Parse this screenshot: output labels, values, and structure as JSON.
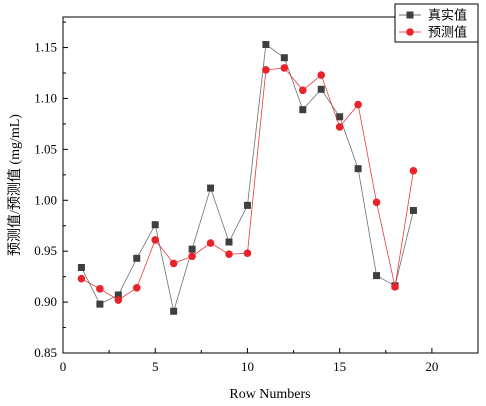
{
  "chart_data": {
    "type": "line",
    "xlabel": "Row Numbers",
    "ylabel": "预测值/预测值 (mg/mL)",
    "xlim": [
      0,
      22.5
    ],
    "ylim": [
      0.85,
      1.18
    ],
    "xticks": [
      0,
      5,
      10,
      15,
      20
    ],
    "xtick_labels": [
      "0",
      "5",
      "10",
      "15",
      "20"
    ],
    "yticks": [
      0.85,
      0.9,
      0.95,
      1.0,
      1.05,
      1.1,
      1.15
    ],
    "ytick_labels": [
      "0.85",
      "0.90",
      "0.95",
      "1.00",
      "1.05",
      "1.10",
      "1.15"
    ],
    "grid": false,
    "legend_position": "top-right",
    "x": [
      1,
      2,
      3,
      4,
      5,
      6,
      7,
      8,
      9,
      10,
      11,
      12,
      13,
      14,
      15,
      16,
      17,
      18,
      19
    ],
    "series": [
      {
        "name": "真实值",
        "marker": "square",
        "color": "#3f3f3f",
        "values": [
          0.934,
          0.898,
          0.907,
          0.943,
          0.976,
          0.891,
          0.952,
          1.012,
          0.959,
          0.995,
          1.153,
          1.14,
          1.089,
          1.109,
          1.082,
          1.031,
          0.926,
          0.916,
          0.99
        ]
      },
      {
        "name": "预测值",
        "marker": "circle",
        "color": "#e8232a",
        "values": [
          0.923,
          0.913,
          0.902,
          0.914,
          0.961,
          0.938,
          0.945,
          0.958,
          0.947,
          0.948,
          1.128,
          1.13,
          1.108,
          1.123,
          1.072,
          1.094,
          0.998,
          0.915,
          1.029
        ]
      }
    ]
  }
}
